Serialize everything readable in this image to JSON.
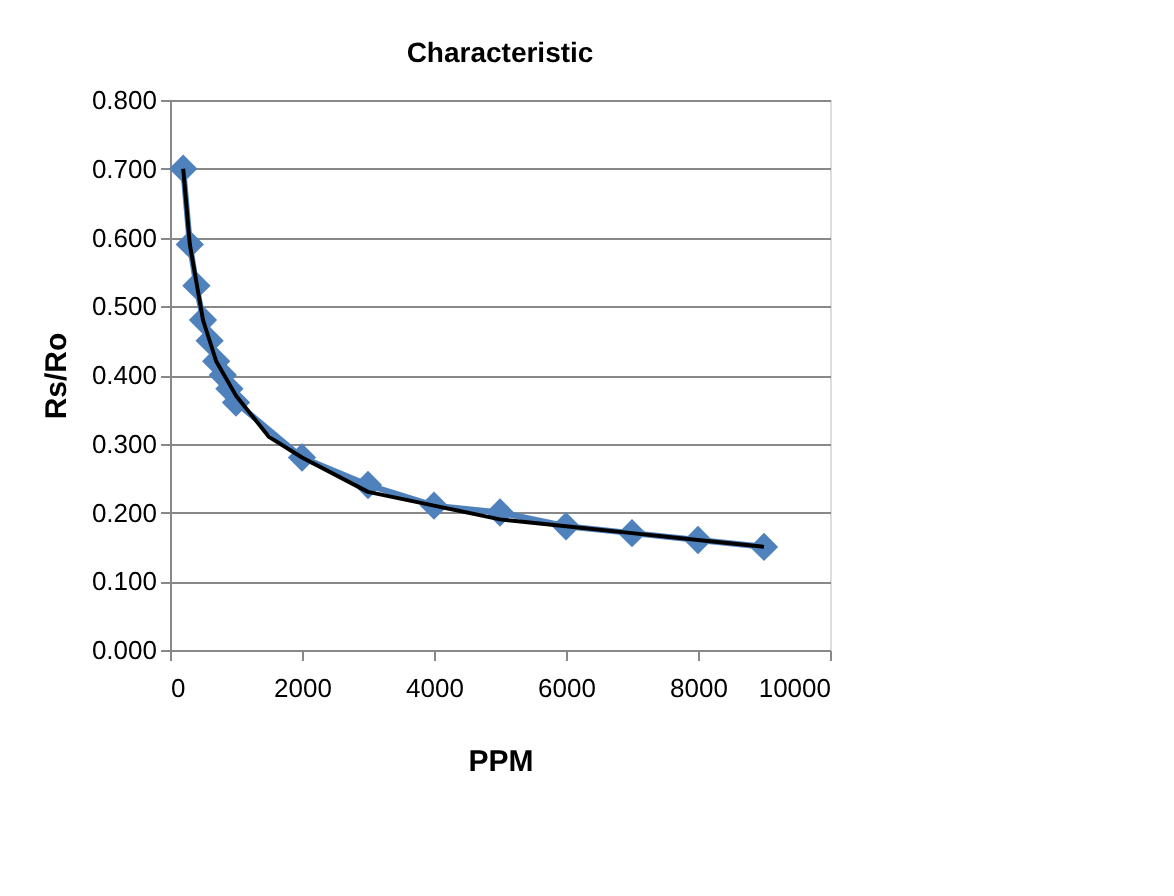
{
  "chart_data": {
    "type": "line",
    "title": "Characteristic",
    "xlabel": "PPM",
    "ylabel": "Rs/Ro",
    "xlim": [
      0,
      10000
    ],
    "xticks": [
      0,
      2000,
      4000,
      6000,
      8000,
      10000
    ],
    "ylim": [
      0,
      0.8
    ],
    "yticks": [
      {
        "value": 0,
        "label": "0.000"
      },
      {
        "value": 0.1,
        "label": "0.100"
      },
      {
        "value": 0.2,
        "label": "0.200"
      },
      {
        "value": 0.3,
        "label": "0.300"
      },
      {
        "value": 0.4,
        "label": "0.400"
      },
      {
        "value": 0.5,
        "label": "0.500"
      },
      {
        "value": 0.6,
        "label": "0.600"
      },
      {
        "value": 0.7,
        "label": "0.700"
      },
      {
        "value": 0.8,
        "label": "0.800"
      }
    ],
    "grid": "y",
    "series": [
      {
        "marker": "diamond",
        "color": "#4f81bd",
        "x": [
          200,
          300,
          400,
          500,
          600,
          700,
          800,
          900,
          1000,
          2000,
          3000,
          4000,
          5000,
          6000,
          7000,
          8000,
          9000
        ],
        "values": [
          0.7,
          0.59,
          0.53,
          0.48,
          0.45,
          0.42,
          0.4,
          0.38,
          0.36,
          0.28,
          0.24,
          0.21,
          0.2,
          0.18,
          0.17,
          0.16,
          0.15
        ]
      },
      {
        "marker": "none",
        "color": "#000000",
        "x": [
          200,
          300,
          500,
          700,
          1000,
          1500,
          2000,
          3000,
          4000,
          5000,
          6000,
          7000,
          8000,
          9000
        ],
        "values": [
          0.7,
          0.59,
          0.48,
          0.42,
          0.37,
          0.31,
          0.28,
          0.23,
          0.21,
          0.19,
          0.18,
          0.17,
          0.16,
          0.15
        ]
      }
    ]
  }
}
